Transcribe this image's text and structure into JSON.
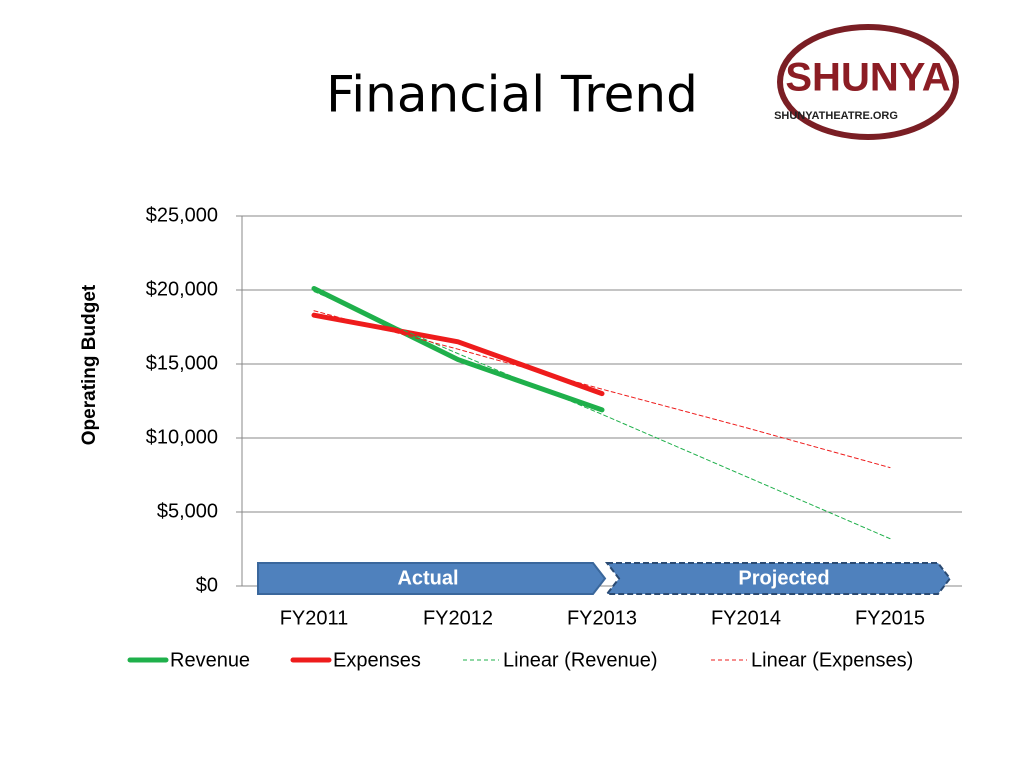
{
  "chart_data": {
    "type": "line",
    "title": "Financial Trend",
    "logo": {
      "name": "SHUNYA",
      "url": "SHUNYATHEATRE.ORG"
    },
    "y_label": "Operating Budget",
    "categories": [
      "FY2011",
      "FY2012",
      "FY2013",
      "FY2014",
      "FY2015"
    ],
    "series": [
      {
        "name": "Revenue",
        "color": "#1fb04b",
        "line_style": "solid",
        "values": [
          20100,
          15300,
          11900,
          null,
          null
        ]
      },
      {
        "name": "Expenses",
        "color": "#ee1c1c",
        "line_style": "solid",
        "values": [
          18300,
          16500,
          13000,
          null,
          null
        ]
      },
      {
        "name": "Linear (Revenue)",
        "color": "#1fb04b",
        "line_style": "dashed",
        "values": [
          19900,
          15700,
          11600,
          7400,
          3200
        ]
      },
      {
        "name": "Linear (Expenses)",
        "color": "#ee1c1c",
        "line_style": "dashed",
        "values": [
          18600,
          16000,
          13300,
          10700,
          8000
        ]
      }
    ],
    "annotations": [
      "Actual",
      "Projected"
    ],
    "ylim": [
      0,
      25000
    ],
    "yticks": [
      {
        "value": 0,
        "label": "$0"
      },
      {
        "value": 5000,
        "label": "$5,000"
      },
      {
        "value": 10000,
        "label": "$10,000"
      },
      {
        "value": 15000,
        "label": "$15,000"
      },
      {
        "value": 20000,
        "label": "$20,000"
      },
      {
        "value": 25000,
        "label": "$25,000"
      }
    ],
    "grid": true
  }
}
